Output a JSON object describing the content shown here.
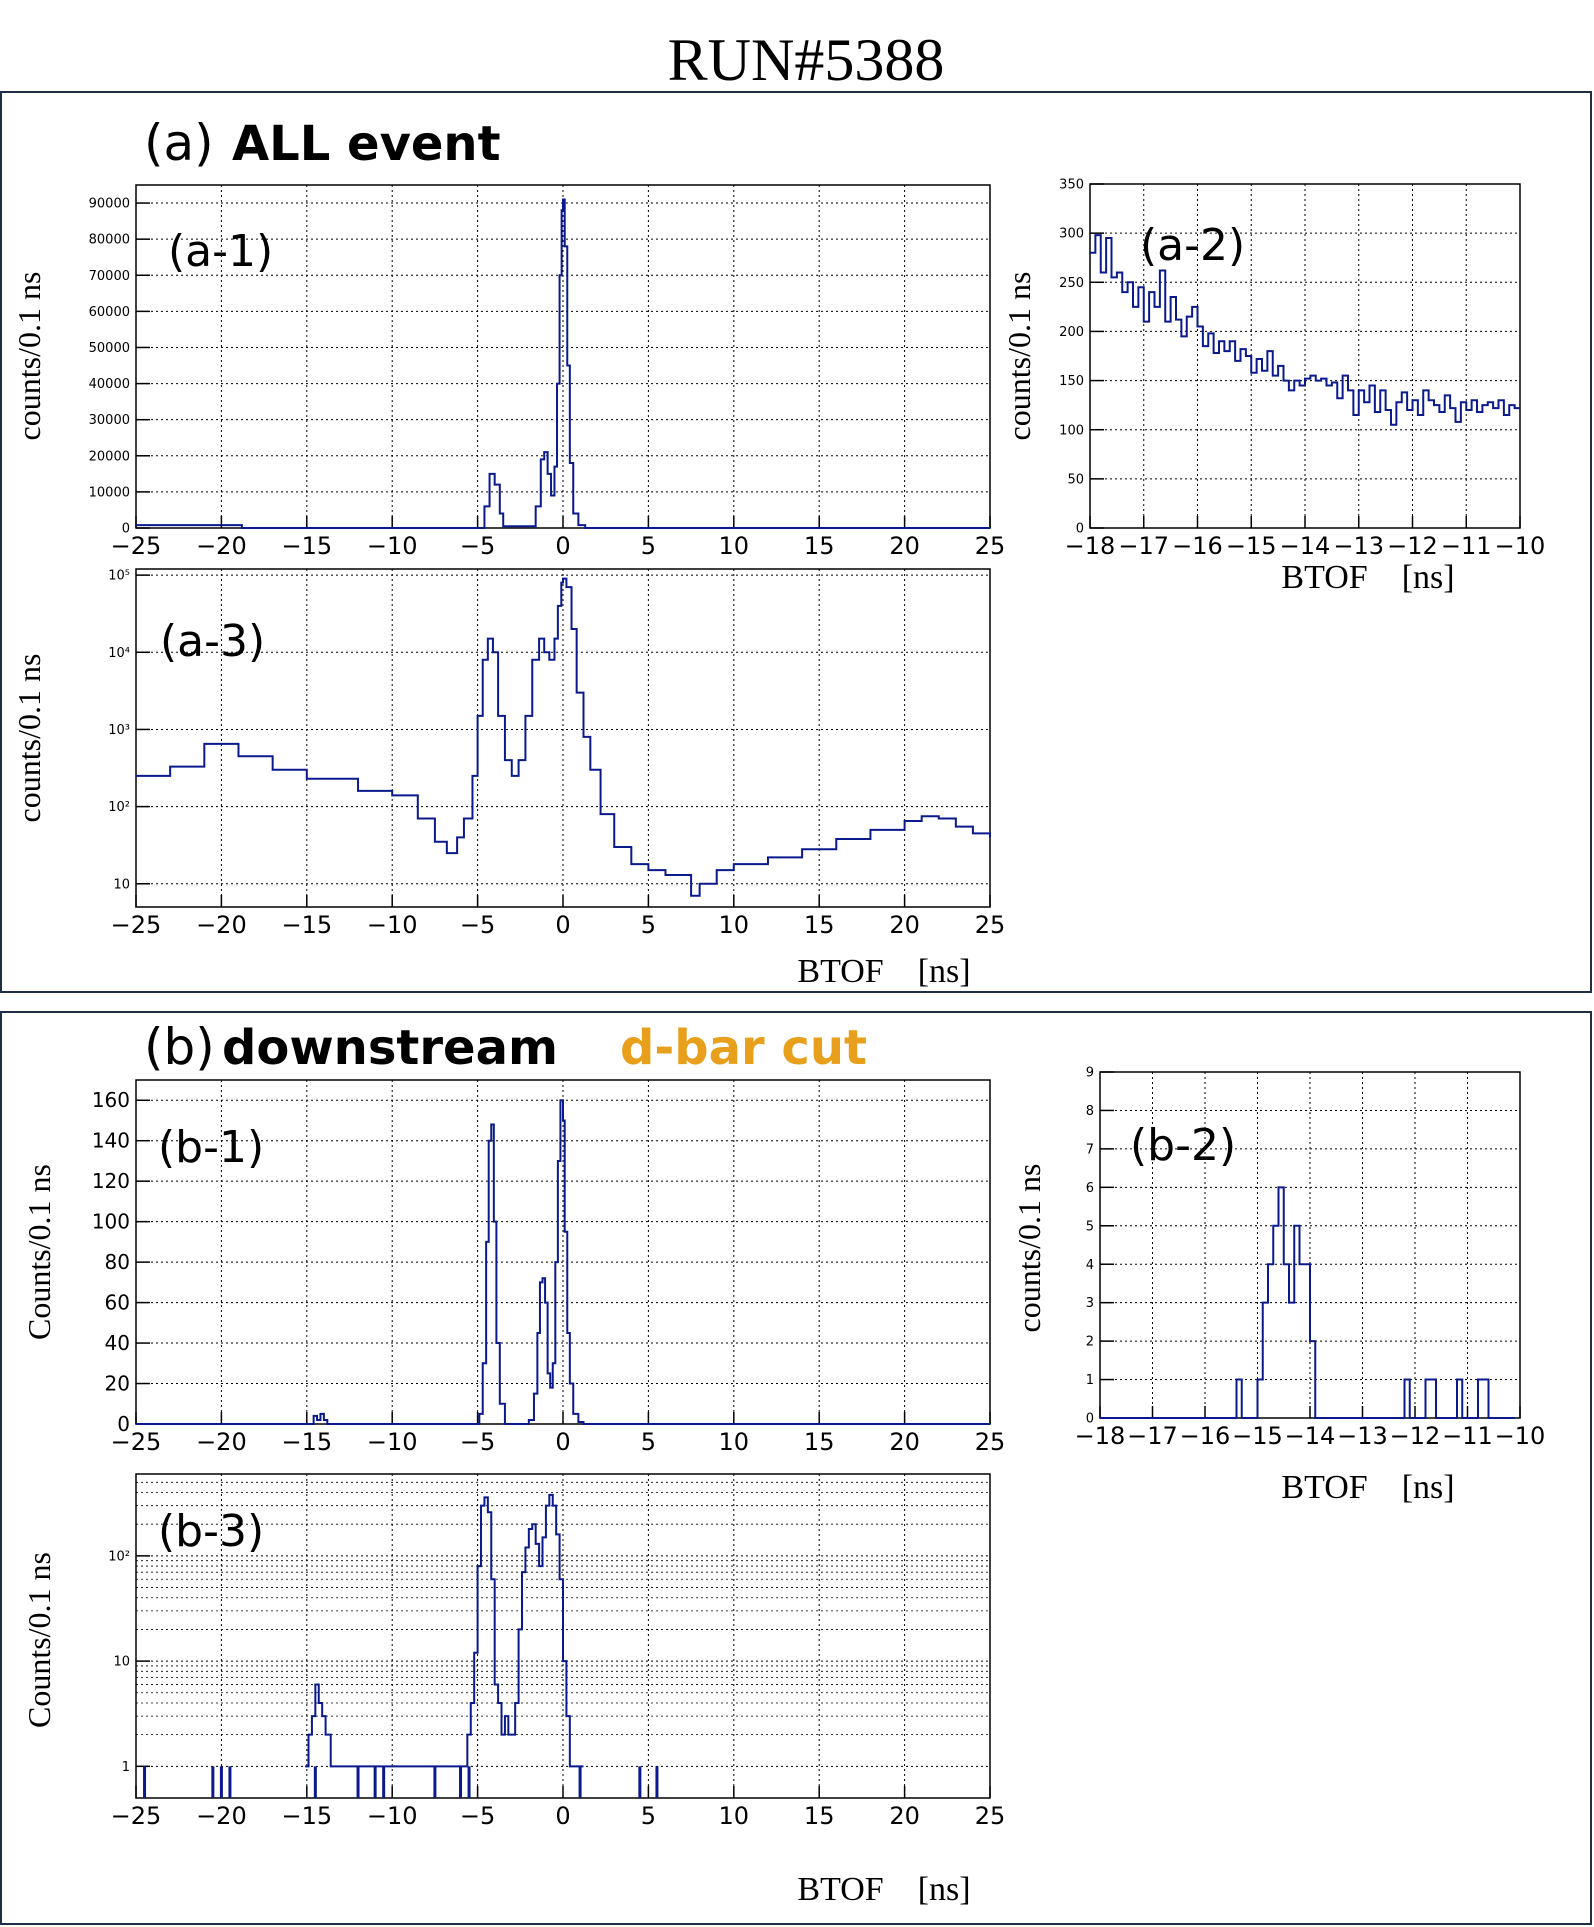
{
  "title": "RUN#5388",
  "colors": {
    "hist": "#0a1a8c",
    "frame": "#1f2f44",
    "orange": "#e8a01c",
    "text": "#000000"
  },
  "panel_a": {
    "letter": "(a)",
    "label": "ALL event"
  },
  "panel_b": {
    "letter": "(b)",
    "label": "downstream",
    "label2": "d-bar cut"
  },
  "chart_data": [
    {
      "id": "a1",
      "type": "line",
      "label": "(a-1)",
      "xlabel": "",
      "ylabel": "counts/0.1 ns",
      "xlim": [
        -25,
        25
      ],
      "ylim": [
        0,
        95000
      ],
      "scale": "linear",
      "grid": true,
      "xticks": [
        -25,
        -20,
        -15,
        -10,
        -5,
        0,
        5,
        10,
        15,
        20,
        25
      ],
      "yticks": [
        0,
        10000,
        20000,
        30000,
        40000,
        50000,
        60000,
        70000,
        80000,
        90000
      ],
      "series": [
        {
          "x": [
            -25,
            -20,
            -18.8,
            -5,
            -4.6,
            -4.3,
            -4.0,
            -3.7,
            -3.5,
            -2.5,
            -1.6,
            -1.3,
            -1.1,
            -0.9,
            -0.7,
            -0.5,
            -0.35,
            -0.2,
            -0.08,
            0.0,
            0.1,
            0.25,
            0.4,
            0.6,
            0.9,
            1.3,
            25
          ],
          "y": [
            800,
            800,
            0,
            0,
            6000,
            15000,
            12000,
            4000,
            500,
            500,
            6000,
            19000,
            21000,
            15000,
            9000,
            17000,
            40000,
            70000,
            88000,
            91000,
            78000,
            45000,
            18000,
            4000,
            800,
            0,
            0
          ]
        }
      ]
    },
    {
      "id": "a2",
      "type": "line",
      "label": "(a-2)",
      "xlabel": "BTOF    [ns]",
      "ylabel": "counts/0.1 ns",
      "xlim": [
        -18,
        -10
      ],
      "ylim": [
        0,
        350
      ],
      "scale": "linear",
      "grid": true,
      "xticks": [
        -18,
        -17,
        -16,
        -15,
        -14,
        -13,
        -12,
        -11,
        -10
      ],
      "yticks": [
        0,
        50,
        100,
        150,
        200,
        250,
        300,
        350
      ],
      "series": [
        {
          "x": [
            -18,
            -17.9,
            -17.8,
            -17.7,
            -17.6,
            -17.5,
            -17.4,
            -17.3,
            -17.2,
            -17.1,
            -17,
            -16.9,
            -16.8,
            -16.7,
            -16.6,
            -16.5,
            -16.4,
            -16.3,
            -16.2,
            -16.1,
            -16,
            -15.9,
            -15.8,
            -15.7,
            -15.6,
            -15.5,
            -15.4,
            -15.3,
            -15.2,
            -15.1,
            -15,
            -14.9,
            -14.8,
            -14.7,
            -14.6,
            -14.5,
            -14.4,
            -14.3,
            -14.2,
            -14.1,
            -14,
            -13.9,
            -13.8,
            -13.7,
            -13.6,
            -13.5,
            -13.4,
            -13.3,
            -13.2,
            -13.1,
            -13,
            -12.9,
            -12.8,
            -12.7,
            -12.6,
            -12.5,
            -12.4,
            -12.3,
            -12.2,
            -12.1,
            -12,
            -11.9,
            -11.8,
            -11.7,
            -11.6,
            -11.5,
            -11.4,
            -11.3,
            -11.2,
            -11.1,
            -11,
            -10.9,
            -10.8,
            -10.7,
            -10.6,
            -10.5,
            -10.4,
            -10.3,
            -10.2,
            -10.1,
            -10
          ],
          "y": [
            280,
            298,
            260,
            295,
            255,
            260,
            240,
            250,
            225,
            245,
            210,
            240,
            225,
            262,
            210,
            235,
            212,
            195,
            215,
            225,
            205,
            185,
            198,
            178,
            190,
            180,
            190,
            170,
            182,
            175,
            158,
            172,
            160,
            180,
            155,
            165,
            150,
            140,
            150,
            145,
            152,
            155,
            150,
            152,
            145,
            148,
            132,
            155,
            140,
            115,
            140,
            128,
            145,
            118,
            140,
            120,
            105,
            128,
            138,
            120,
            130,
            115,
            140,
            130,
            125,
            118,
            135,
            122,
            108,
            128,
            120,
            130,
            118,
            125,
            128,
            122,
            130,
            115,
            125,
            122,
            122
          ]
        }
      ]
    },
    {
      "id": "a3",
      "type": "line",
      "label": "(a-3)",
      "xlabel": "BTOF    [ns]",
      "ylabel": "counts/0.1 ns",
      "xlim": [
        -25,
        25
      ],
      "ylim": [
        5,
        120000
      ],
      "scale": "log",
      "grid": true,
      "xticks": [
        -25,
        -20,
        -15,
        -10,
        -5,
        0,
        5,
        10,
        15,
        20,
        25
      ],
      "yticks": [
        10,
        100,
        1000,
        10000,
        100000
      ],
      "ytick_labels": [
        "10",
        "10²",
        "10³",
        "10⁴",
        "10⁵"
      ],
      "series": [
        {
          "x": [
            -25,
            -23,
            -21,
            -19,
            -17,
            -15,
            -12,
            -10,
            -8.5,
            -7.5,
            -6.8,
            -6.2,
            -5.8,
            -5.3,
            -5,
            -4.7,
            -4.4,
            -4.1,
            -3.8,
            -3.4,
            -3,
            -2.6,
            -2.2,
            -1.8,
            -1.4,
            -1.1,
            -0.8,
            -0.5,
            -0.3,
            -0.1,
            0,
            0.2,
            0.5,
            0.8,
            1.2,
            1.6,
            2.2,
            3,
            4,
            5,
            6,
            7,
            7.5,
            8,
            9,
            10,
            12,
            14,
            16,
            18,
            20,
            21,
            22,
            23,
            24,
            25
          ],
          "y": [
            250,
            330,
            650,
            450,
            300,
            230,
            160,
            140,
            70,
            35,
            25,
            40,
            70,
            250,
            1500,
            8000,
            15000,
            10000,
            1500,
            400,
            250,
            400,
            1500,
            8000,
            15000,
            10000,
            8000,
            15000,
            40000,
            80000,
            90000,
            70000,
            20000,
            3000,
            800,
            300,
            80,
            30,
            18,
            15,
            13,
            13,
            7,
            10,
            15,
            18,
            22,
            28,
            38,
            50,
            65,
            75,
            70,
            55,
            45,
            40
          ]
        }
      ]
    },
    {
      "id": "b1",
      "type": "line",
      "label": "(b-1)",
      "xlabel": "",
      "ylabel": "Counts/0.1 ns",
      "xlim": [
        -25,
        25
      ],
      "ylim": [
        0,
        170
      ],
      "scale": "linear",
      "grid": true,
      "xticks": [
        -25,
        -20,
        -15,
        -10,
        -5,
        0,
        5,
        10,
        15,
        20,
        25
      ],
      "yticks": [
        0,
        20,
        40,
        60,
        80,
        100,
        120,
        140,
        160
      ],
      "series": [
        {
          "x": [
            -25,
            -14.8,
            -14.6,
            -14.4,
            -14.2,
            -14.0,
            -13.8,
            -5.2,
            -4.9,
            -4.7,
            -4.5,
            -4.35,
            -4.2,
            -4.05,
            -3.9,
            -3.7,
            -3.4,
            -2,
            -1.7,
            -1.5,
            -1.35,
            -1.2,
            -1.05,
            -0.9,
            -0.75,
            -0.6,
            -0.45,
            -0.3,
            -0.15,
            0,
            0.1,
            0.25,
            0.4,
            0.6,
            0.9,
            1.2,
            25
          ],
          "y": [
            0,
            0,
            4,
            2,
            5,
            2,
            0,
            0,
            5,
            30,
            90,
            140,
            148,
            100,
            40,
            10,
            0,
            2,
            15,
            45,
            70,
            72,
            60,
            25,
            18,
            30,
            80,
            130,
            160,
            150,
            95,
            45,
            20,
            5,
            1,
            0,
            0
          ]
        }
      ]
    },
    {
      "id": "b2",
      "type": "line",
      "label": "(b-2)",
      "xlabel": "BTOF    [ns]",
      "ylabel": "counts/0.1 ns",
      "xlim": [
        -18,
        -10
      ],
      "ylim": [
        0,
        9
      ],
      "scale": "linear",
      "grid": true,
      "xticks": [
        -18,
        -17,
        -16,
        -15,
        -14,
        -13,
        -12,
        -11,
        -10
      ],
      "yticks": [
        0,
        1,
        2,
        3,
        4,
        5,
        6,
        7,
        8,
        9
      ],
      "series": [
        {
          "x": [
            -18,
            -15.4,
            -15.3,
            -15.2,
            -15.0,
            -14.9,
            -14.8,
            -14.7,
            -14.6,
            -14.5,
            -14.4,
            -14.3,
            -14.2,
            -14.1,
            -14.0,
            -13.9,
            -13.8,
            -12.2,
            -12.1,
            -11.9,
            -11.8,
            -11.6,
            -11.5,
            -11.2,
            -11.1,
            -10.9,
            -10.8,
            -10.6,
            -10.5,
            -10.1
          ],
          "y": [
            0,
            1,
            0,
            0,
            1,
            3,
            4,
            5,
            6,
            4,
            3,
            5,
            4,
            4,
            2,
            0,
            0,
            1,
            0,
            0,
            1,
            0,
            0,
            1,
            0,
            0,
            1,
            0,
            0,
            0
          ]
        }
      ]
    },
    {
      "id": "b3",
      "type": "line",
      "label": "(b-3)",
      "xlabel": "BTOF    [ns]",
      "ylabel": "Counts/0.1 ns",
      "xlim": [
        -25,
        25
      ],
      "ylim": [
        0.5,
        600
      ],
      "scale": "log",
      "grid": true,
      "xticks": [
        -25,
        -20,
        -15,
        -10,
        -5,
        0,
        5,
        10,
        15,
        20,
        25
      ],
      "yticks": [
        1,
        10,
        100
      ],
      "ytick_labels": [
        "1",
        "10",
        "10²"
      ],
      "series": [
        {
          "x": [
            -15.1,
            -14.9,
            -14.7,
            -14.5,
            -14.3,
            -14.1,
            -13.9,
            -13.6,
            -5.8,
            -5.6,
            -5.4,
            -5.2,
            -5.0,
            -4.8,
            -4.6,
            -4.4,
            -4.2,
            -4.0,
            -3.8,
            -3.6,
            -3.4,
            -3.2,
            -3.0,
            -2.8,
            -2.6,
            -2.4,
            -2.2,
            -2.0,
            -1.8,
            -1.6,
            -1.4,
            -1.2,
            -1.0,
            -0.8,
            -0.6,
            -0.4,
            -0.2,
            0,
            0.2,
            0.4,
            0.6,
            0.8,
            1.0,
            1.2
          ],
          "y": [
            1,
            2,
            3,
            6,
            4,
            3,
            2,
            1,
            1,
            2,
            4,
            12,
            80,
            300,
            360,
            260,
            60,
            6,
            4,
            2,
            3,
            2,
            2,
            4,
            20,
            70,
            120,
            180,
            200,
            130,
            80,
            150,
            300,
            380,
            300,
            160,
            60,
            10,
            3,
            1,
            1,
            1,
            1,
            1
          ]
        }
      ],
      "isolated_x": [
        -24.5,
        -20.5,
        -20,
        -19.5,
        -14.5,
        -12,
        -11,
        -10.5,
        -7.5,
        -6,
        -5.5,
        1,
        4.5,
        5.5
      ]
    }
  ]
}
